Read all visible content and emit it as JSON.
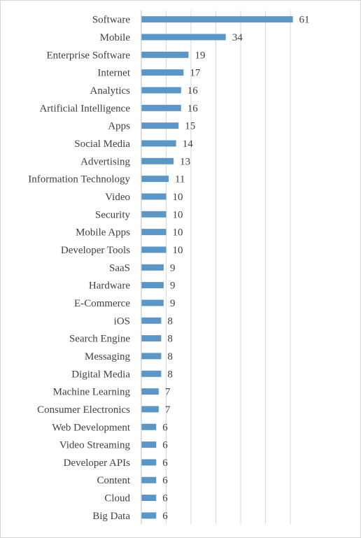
{
  "colors": {
    "bar": "#5b96c8",
    "grid": "#d9d9d9",
    "text": "#404040"
  },
  "chart_data": {
    "type": "bar",
    "orientation": "horizontal",
    "title": "",
    "xlabel": "",
    "ylabel": "",
    "xlim": [
      0,
      70
    ],
    "grid": true,
    "categories": [
      "Software",
      "Mobile",
      "Enterprise Software",
      "Internet",
      "Analytics",
      "Artificial Intelligence",
      "Apps",
      "Social Media",
      "Advertising",
      "Information Technology",
      "Video",
      "Security",
      "Mobile Apps",
      "Developer Tools",
      "SaaS",
      "Hardware",
      "E-Commerce",
      "iOS",
      "Search Engine",
      "Messaging",
      "Digital Media",
      "Machine Learning",
      "Consumer Electronics",
      "Web Development",
      "Video Streaming",
      "Developer APIs",
      "Content",
      "Cloud",
      "Big Data"
    ],
    "values": [
      61,
      34,
      19,
      17,
      16,
      16,
      15,
      14,
      13,
      11,
      10,
      10,
      10,
      10,
      9,
      9,
      9,
      8,
      8,
      8,
      8,
      7,
      7,
      6,
      6,
      6,
      6,
      6,
      6
    ]
  }
}
